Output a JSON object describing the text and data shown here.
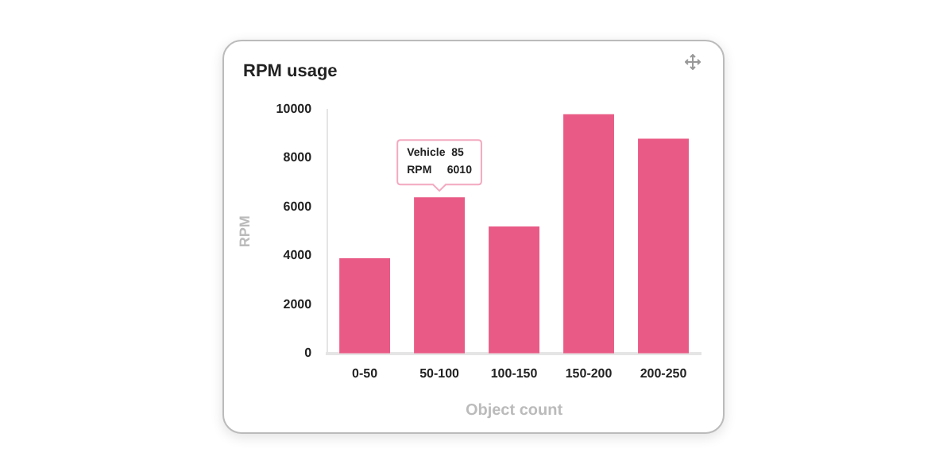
{
  "chart_data": {
    "type": "bar",
    "title": "RPM usage",
    "xlabel": "Object count",
    "ylabel": "RPM",
    "categories": [
      "0-50",
      "50-100",
      "100-150",
      "150-200",
      "200-250"
    ],
    "values": [
      3900,
      6400,
      5200,
      9800,
      8800
    ],
    "color": "#e95b86",
    "ylim": [
      0,
      10000
    ],
    "yticks": [
      0,
      2000,
      4000,
      6000,
      8000,
      10000
    ],
    "grid": false,
    "legend": false,
    "annotations": [
      "Vehicle  85",
      "RPM     6010"
    ]
  }
}
